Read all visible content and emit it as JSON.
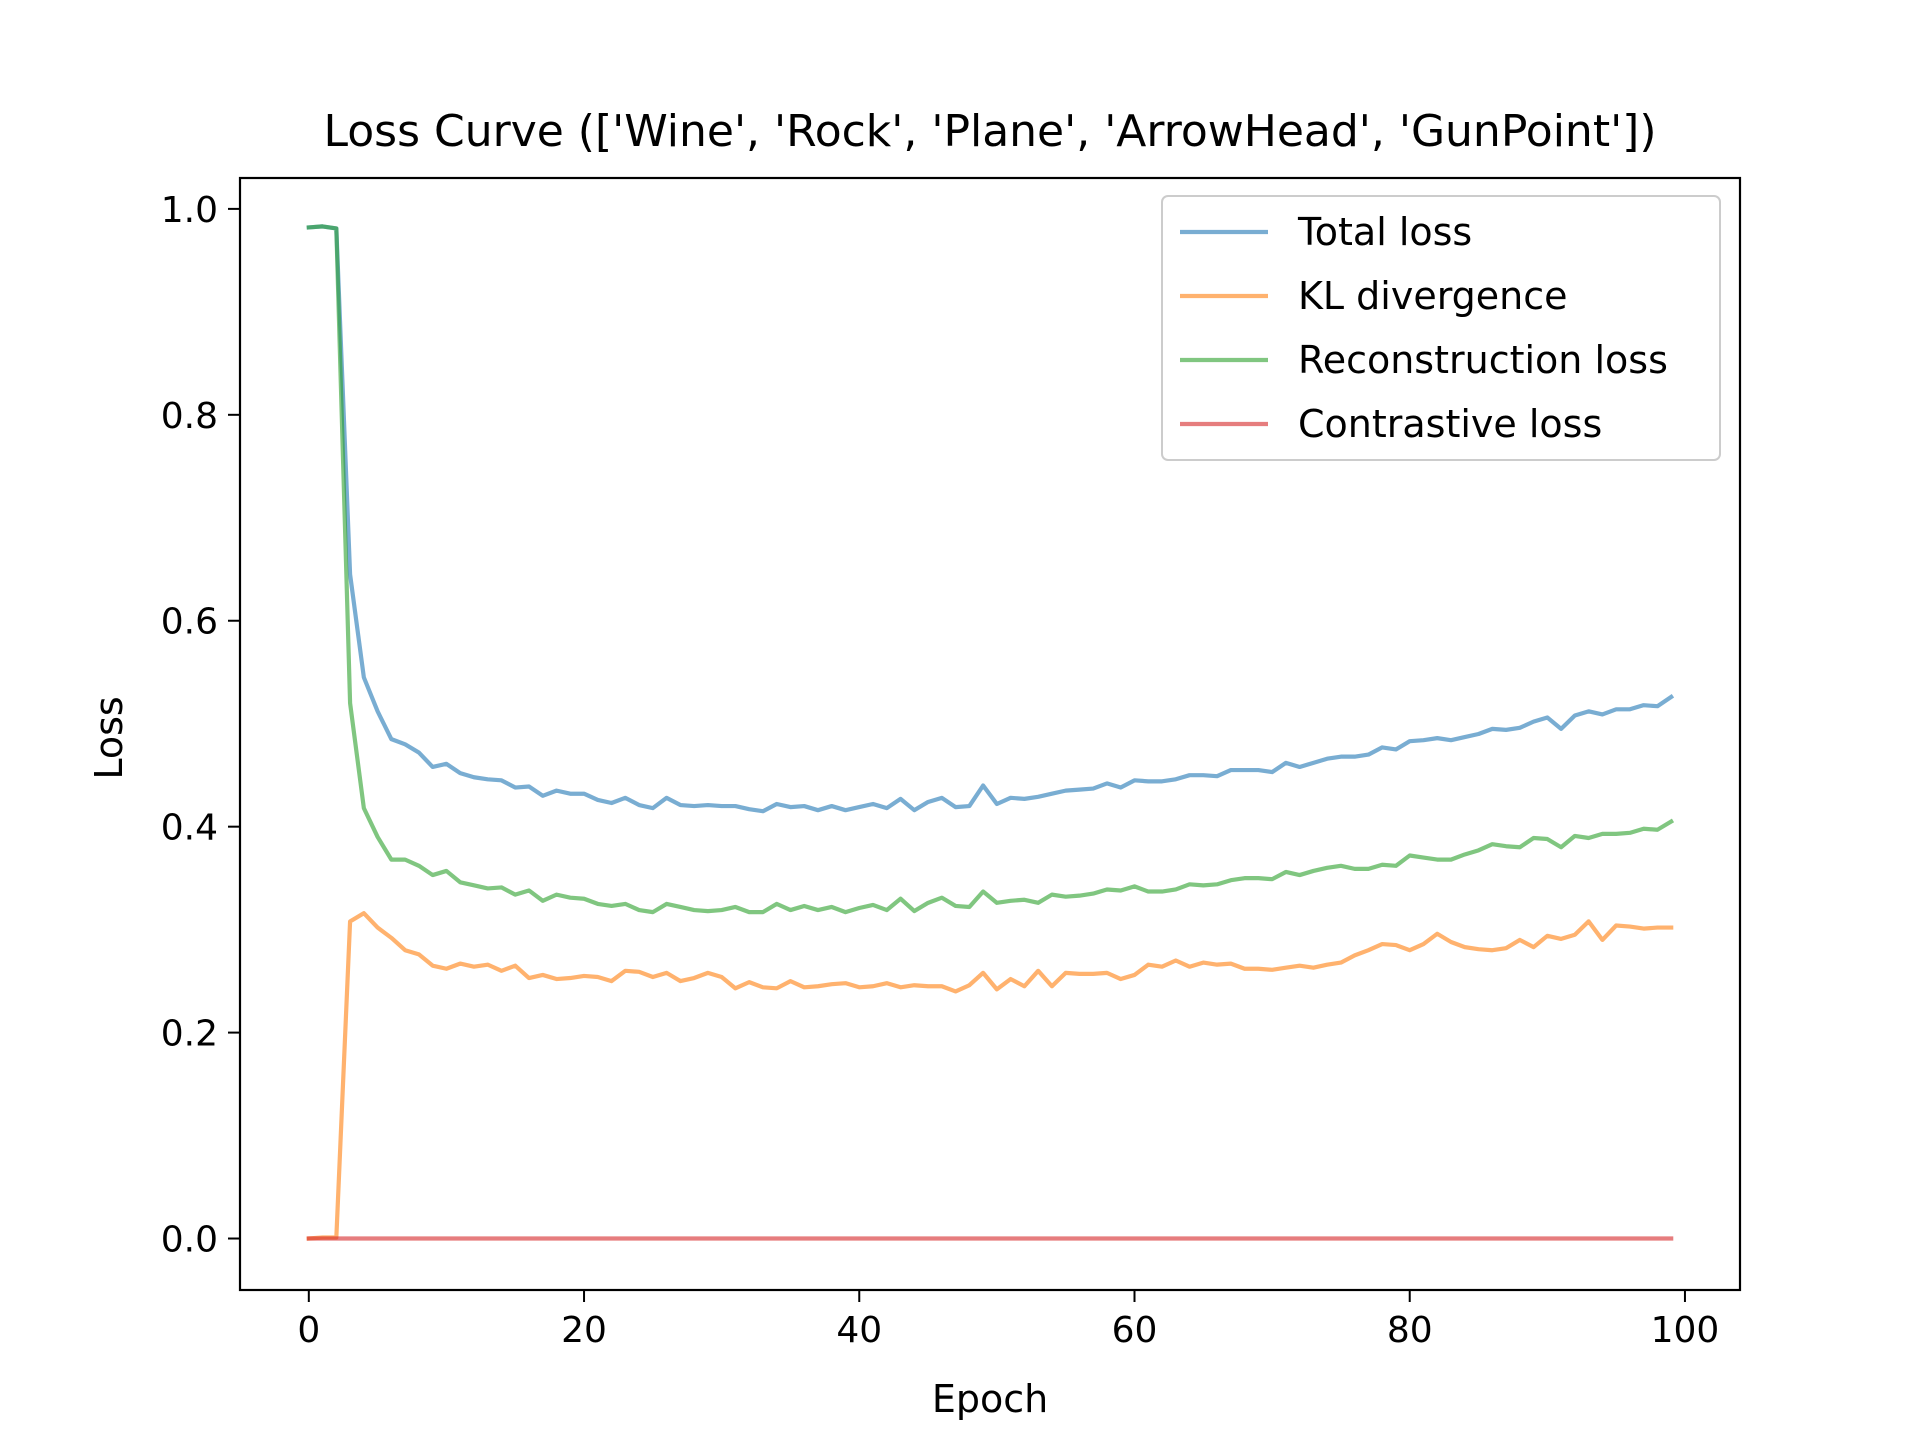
{
  "chart_data": {
    "type": "line",
    "title": "Loss Curve (['Wine', 'Rock', 'Plane', 'ArrowHead', 'GunPoint'])",
    "xlabel": "Epoch",
    "ylabel": "Loss",
    "xlim": [
      -5,
      104
    ],
    "ylim": [
      -0.05,
      1.03
    ],
    "xticks": [
      0,
      20,
      40,
      60,
      80,
      100
    ],
    "xtick_labels": [
      "0",
      "20",
      "40",
      "60",
      "80",
      "100"
    ],
    "yticks": [
      0.0,
      0.2,
      0.4,
      0.6,
      0.8,
      1.0
    ],
    "ytick_labels": [
      "0.0",
      "0.2",
      "0.4",
      "0.6",
      "0.8",
      "1.0"
    ],
    "grid": false,
    "legend_position": "top-right",
    "x": [
      0,
      1,
      2,
      3,
      4,
      5,
      6,
      7,
      8,
      9,
      10,
      11,
      12,
      13,
      14,
      15,
      16,
      17,
      18,
      19,
      20,
      21,
      22,
      23,
      24,
      25,
      26,
      27,
      28,
      29,
      30,
      31,
      32,
      33,
      34,
      35,
      36,
      37,
      38,
      39,
      40,
      41,
      42,
      43,
      44,
      45,
      46,
      47,
      48,
      49,
      50,
      51,
      52,
      53,
      54,
      55,
      56,
      57,
      58,
      59,
      60,
      61,
      62,
      63,
      64,
      65,
      66,
      67,
      68,
      69,
      70,
      71,
      72,
      73,
      74,
      75,
      76,
      77,
      78,
      79,
      80,
      81,
      82,
      83,
      84,
      85,
      86,
      87,
      88,
      89,
      90,
      91,
      92,
      93,
      94,
      95,
      96,
      97,
      98,
      99
    ],
    "series": [
      {
        "name": "Total loss",
        "color": "#1f77b4",
        "values": [
          0.982,
          0.983,
          0.981,
          0.645,
          0.545,
          0.512,
          0.485,
          0.48,
          0.472,
          0.458,
          0.461,
          0.452,
          0.448,
          0.446,
          0.445,
          0.438,
          0.439,
          0.43,
          0.435,
          0.432,
          0.432,
          0.426,
          0.423,
          0.428,
          0.421,
          0.418,
          0.428,
          0.421,
          0.42,
          0.421,
          0.42,
          0.42,
          0.417,
          0.415,
          0.422,
          0.419,
          0.42,
          0.416,
          0.42,
          0.416,
          0.419,
          0.422,
          0.418,
          0.427,
          0.416,
          0.424,
          0.428,
          0.419,
          0.42,
          0.44,
          0.422,
          0.428,
          0.427,
          0.429,
          0.432,
          0.435,
          0.436,
          0.437,
          0.442,
          0.438,
          0.445,
          0.444,
          0.444,
          0.446,
          0.45,
          0.45,
          0.449,
          0.455,
          0.455,
          0.455,
          0.453,
          0.462,
          0.458,
          0.462,
          0.466,
          0.468,
          0.468,
          0.47,
          0.477,
          0.475,
          0.483,
          0.484,
          0.486,
          0.484,
          0.487,
          0.49,
          0.495,
          0.494,
          0.496,
          0.502,
          0.506,
          0.495,
          0.508,
          0.512,
          0.509,
          0.514,
          0.514,
          0.518,
          0.517,
          0.526
        ]
      },
      {
        "name": "KL divergence",
        "color": "#ff7f0e",
        "values": [
          0.0,
          0.001,
          0.001,
          0.308,
          0.316,
          0.302,
          0.292,
          0.28,
          0.276,
          0.265,
          0.262,
          0.267,
          0.264,
          0.266,
          0.26,
          0.265,
          0.253,
          0.256,
          0.252,
          0.253,
          0.255,
          0.254,
          0.25,
          0.26,
          0.259,
          0.254,
          0.258,
          0.25,
          0.253,
          0.258,
          0.254,
          0.243,
          0.249,
          0.244,
          0.243,
          0.25,
          0.244,
          0.245,
          0.247,
          0.248,
          0.244,
          0.245,
          0.248,
          0.244,
          0.246,
          0.245,
          0.245,
          0.24,
          0.246,
          0.258,
          0.242,
          0.252,
          0.245,
          0.26,
          0.245,
          0.258,
          0.257,
          0.257,
          0.258,
          0.252,
          0.256,
          0.266,
          0.264,
          0.27,
          0.264,
          0.268,
          0.266,
          0.267,
          0.262,
          0.262,
          0.261,
          0.263,
          0.265,
          0.263,
          0.266,
          0.268,
          0.275,
          0.28,
          0.286,
          0.285,
          0.28,
          0.286,
          0.296,
          0.288,
          0.283,
          0.281,
          0.28,
          0.282,
          0.29,
          0.283,
          0.294,
          0.291,
          0.295,
          0.308,
          0.29,
          0.304,
          0.303,
          0.301,
          0.302,
          0.302
        ]
      },
      {
        "name": "Reconstruction loss",
        "color": "#2ca02c",
        "values": [
          0.982,
          0.983,
          0.981,
          0.52,
          0.418,
          0.39,
          0.368,
          0.368,
          0.362,
          0.353,
          0.357,
          0.346,
          0.343,
          0.34,
          0.341,
          0.334,
          0.338,
          0.328,
          0.334,
          0.331,
          0.33,
          0.325,
          0.323,
          0.325,
          0.319,
          0.317,
          0.325,
          0.322,
          0.319,
          0.318,
          0.319,
          0.322,
          0.317,
          0.317,
          0.325,
          0.319,
          0.323,
          0.319,
          0.322,
          0.317,
          0.321,
          0.324,
          0.319,
          0.33,
          0.318,
          0.326,
          0.331,
          0.323,
          0.322,
          0.337,
          0.326,
          0.328,
          0.329,
          0.326,
          0.334,
          0.332,
          0.333,
          0.335,
          0.339,
          0.338,
          0.342,
          0.337,
          0.337,
          0.339,
          0.344,
          0.343,
          0.344,
          0.348,
          0.35,
          0.35,
          0.349,
          0.356,
          0.353,
          0.357,
          0.36,
          0.362,
          0.359,
          0.359,
          0.363,
          0.362,
          0.372,
          0.37,
          0.368,
          0.368,
          0.373,
          0.377,
          0.383,
          0.381,
          0.38,
          0.389,
          0.388,
          0.38,
          0.391,
          0.389,
          0.393,
          0.393,
          0.394,
          0.398,
          0.397,
          0.405
        ]
      },
      {
        "name": "Contrastive loss",
        "color": "#d62728",
        "values": [
          0.0,
          0.0,
          0.0,
          0.0,
          0.0,
          0.0,
          0.0,
          0.0,
          0.0,
          0.0,
          0.0,
          0.0,
          0.0,
          0.0,
          0.0,
          0.0,
          0.0,
          0.0,
          0.0,
          0.0,
          0.0,
          0.0,
          0.0,
          0.0,
          0.0,
          0.0,
          0.0,
          0.0,
          0.0,
          0.0,
          0.0,
          0.0,
          0.0,
          0.0,
          0.0,
          0.0,
          0.0,
          0.0,
          0.0,
          0.0,
          0.0,
          0.0,
          0.0,
          0.0,
          0.0,
          0.0,
          0.0,
          0.0,
          0.0,
          0.0,
          0.0,
          0.0,
          0.0,
          0.0,
          0.0,
          0.0,
          0.0,
          0.0,
          0.0,
          0.0,
          0.0,
          0.0,
          0.0,
          0.0,
          0.0,
          0.0,
          0.0,
          0.0,
          0.0,
          0.0,
          0.0,
          0.0,
          0.0,
          0.0,
          0.0,
          0.0,
          0.0,
          0.0,
          0.0,
          0.0,
          0.0,
          0.0,
          0.0,
          0.0,
          0.0,
          0.0,
          0.0,
          0.0,
          0.0,
          0.0,
          0.0,
          0.0,
          0.0,
          0.0,
          0.0,
          0.0,
          0.0,
          0.0,
          0.0,
          0.0
        ]
      }
    ]
  }
}
